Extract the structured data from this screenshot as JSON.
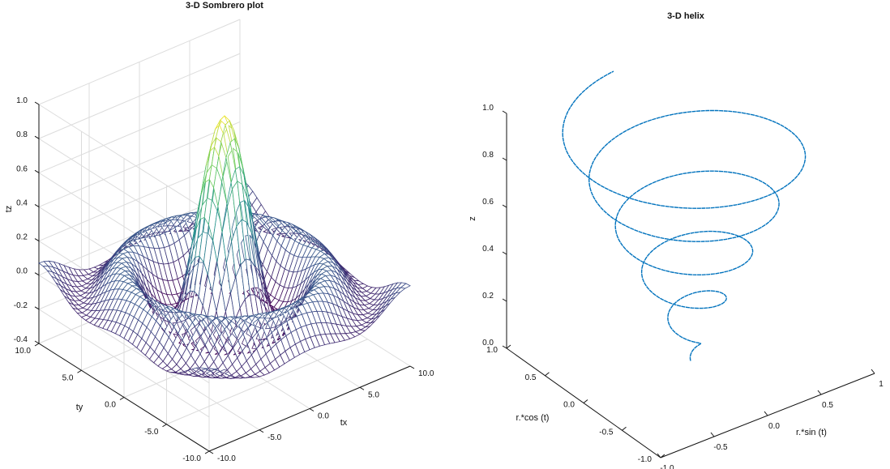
{
  "chart_data": [
    {
      "type": "surface",
      "title": "3-D Sombrero plot",
      "xlabel": "tx",
      "ylabel": "ty",
      "zlabel": "tz",
      "function": "z = sin(r)/r, r = sqrt(tx^2 + ty^2)",
      "x_range": [
        -10,
        10
      ],
      "y_range": [
        -10,
        10
      ],
      "zlim": [
        -0.4,
        1.0
      ],
      "x_ticks": [
        "-10.0",
        "-5.0",
        "0.0",
        "5.0",
        "10.0"
      ],
      "y_ticks": [
        "-10.0",
        "-5.0",
        "0.0",
        "5.0",
        "10.0"
      ],
      "z_ticks": [
        "-0.4",
        "-0.2",
        "0.0",
        "0.2",
        "0.4",
        "0.6",
        "0.8",
        "1.0"
      ],
      "grid": true,
      "colormap": "viridis",
      "colormap_colors": [
        "#440154",
        "#3b528b",
        "#21918c",
        "#5ec962",
        "#fde725"
      ],
      "mesh_style": "wireframe"
    },
    {
      "type": "line3d",
      "title": "3-D helix",
      "xlabel": "r.*sin (t)",
      "ylabel": "r.*cos (t)",
      "zlabel": "z",
      "series": [
        {
          "turns": 5,
          "r_start": 0.0,
          "r_end": 1.0,
          "z_start": 0.0,
          "z_end": 1.0,
          "color": "#0072bd"
        }
      ],
      "x_ticks": [
        "-1.0",
        "-0.5",
        "0.0",
        "0.5",
        "1"
      ],
      "y_ticks": [
        "-1.0",
        "-0.5",
        "0.0",
        "0.5",
        "1.0"
      ],
      "z_ticks": [
        "0.0",
        "0.2",
        "0.4",
        "0.6",
        "0.8",
        "1.0"
      ],
      "zlim": [
        0,
        1
      ],
      "grid": false
    }
  ]
}
